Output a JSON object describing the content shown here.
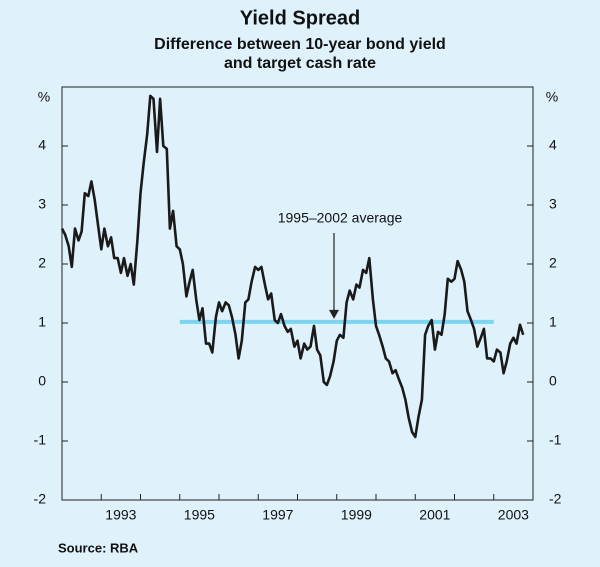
{
  "chart_data": {
    "type": "line",
    "title": "Yield Spread",
    "subtitle": [
      "Difference between 10-year bond yield",
      "and target cash rate"
    ],
    "y_label": "%",
    "source": "Source: RBA",
    "xlim": [
      1992,
      2004
    ],
    "xticks": [
      {
        "value": 1993.5,
        "label": "1993"
      },
      {
        "value": 1995.5,
        "label": "1995"
      },
      {
        "value": 1997.5,
        "label": "1997"
      },
      {
        "value": 1999.5,
        "label": "1999"
      },
      {
        "value": 2001.5,
        "label": "2001"
      },
      {
        "value": 2003.5,
        "label": "2003"
      }
    ],
    "ylim": [
      -2,
      5
    ],
    "yticks": [
      -2,
      -1,
      0,
      1,
      2,
      3,
      4
    ],
    "grid": false,
    "x": [
      1992.0,
      1992.08,
      1992.17,
      1992.25,
      1992.33,
      1992.42,
      1992.5,
      1992.58,
      1992.67,
      1992.75,
      1992.83,
      1992.92,
      1993.0,
      1993.08,
      1993.17,
      1993.25,
      1993.33,
      1993.42,
      1993.5,
      1993.58,
      1993.67,
      1993.75,
      1993.83,
      1993.92,
      1994.0,
      1994.08,
      1994.17,
      1994.25,
      1994.33,
      1994.42,
      1994.5,
      1994.58,
      1994.67,
      1994.75,
      1994.83,
      1994.92,
      1995.0,
      1995.08,
      1995.17,
      1995.25,
      1995.33,
      1995.42,
      1995.5,
      1995.58,
      1995.67,
      1995.75,
      1995.83,
      1995.92,
      1996.0,
      1996.08,
      1996.17,
      1996.25,
      1996.33,
      1996.42,
      1996.5,
      1996.58,
      1996.67,
      1996.75,
      1996.83,
      1996.92,
      1997.0,
      1997.08,
      1997.17,
      1997.25,
      1997.33,
      1997.42,
      1997.5,
      1997.58,
      1997.67,
      1997.75,
      1997.83,
      1997.92,
      1998.0,
      1998.08,
      1998.17,
      1998.25,
      1998.33,
      1998.42,
      1998.5,
      1998.58,
      1998.67,
      1998.75,
      1998.83,
      1998.92,
      1999.0,
      1999.08,
      1999.17,
      1999.25,
      1999.33,
      1999.42,
      1999.5,
      1999.58,
      1999.67,
      1999.75,
      1999.83,
      1999.92,
      2000.0,
      2000.08,
      2000.17,
      2000.25,
      2000.33,
      2000.42,
      2000.5,
      2000.58,
      2000.67,
      2000.75,
      2000.83,
      2000.92,
      2001.0,
      2001.08,
      2001.17,
      2001.25,
      2001.33,
      2001.42,
      2001.5,
      2001.58,
      2001.67,
      2001.75,
      2001.83,
      2001.92,
      2002.0,
      2002.08,
      2002.17,
      2002.25,
      2002.33,
      2002.42,
      2002.5,
      2002.58,
      2002.67,
      2002.75,
      2002.83,
      2002.92,
      2003.0,
      2003.08,
      2003.17,
      2003.25,
      2003.33,
      2003.42,
      2003.5,
      2003.58,
      2003.67,
      2003.75
    ],
    "series": [
      {
        "name": "Yield spread",
        "color": "#1a1a1a",
        "values": [
          2.6,
          2.5,
          2.3,
          1.95,
          2.6,
          2.4,
          2.55,
          3.2,
          3.15,
          3.4,
          3.1,
          2.65,
          2.25,
          2.6,
          2.3,
          2.45,
          2.1,
          2.1,
          1.85,
          2.1,
          1.8,
          2.0,
          1.65,
          2.4,
          3.2,
          3.7,
          4.2,
          4.85,
          4.8,
          3.9,
          4.8,
          4.0,
          3.95,
          2.6,
          2.9,
          2.3,
          2.25,
          2.0,
          1.45,
          1.7,
          1.9,
          1.4,
          1.05,
          1.25,
          0.65,
          0.65,
          0.5,
          1.1,
          1.35,
          1.2,
          1.35,
          1.3,
          1.1,
          0.8,
          0.4,
          0.7,
          1.35,
          1.4,
          1.7,
          1.95,
          1.9,
          1.95,
          1.65,
          1.4,
          1.5,
          1.05,
          1.0,
          1.15,
          0.95,
          0.85,
          0.9,
          0.6,
          0.7,
          0.4,
          0.65,
          0.55,
          0.6,
          0.95,
          0.55,
          0.45,
          0.0,
          -0.05,
          0.1,
          0.35,
          0.7,
          0.8,
          0.75,
          1.35,
          1.55,
          1.4,
          1.65,
          1.6,
          1.9,
          1.85,
          2.1,
          1.4,
          0.95,
          0.8,
          0.6,
          0.4,
          0.35,
          0.15,
          0.2,
          0.05,
          -0.1,
          -0.3,
          -0.6,
          -0.85,
          -0.93,
          -0.6,
          -0.3,
          0.8,
          0.95,
          1.05,
          0.55,
          0.85,
          0.8,
          1.15,
          1.75,
          1.7,
          1.75,
          2.05,
          1.9,
          1.7,
          1.2,
          1.05,
          0.9,
          0.6,
          0.75,
          0.9,
          0.4,
          0.4,
          0.35,
          0.55,
          0.5,
          0.15,
          0.35,
          0.65,
          0.75,
          0.65,
          0.97,
          0.8
        ]
      }
    ],
    "average": {
      "label": "1995–2002 average",
      "value": 1.02,
      "x": [
        1995,
        2003
      ],
      "color": "#7fd3ee"
    }
  }
}
